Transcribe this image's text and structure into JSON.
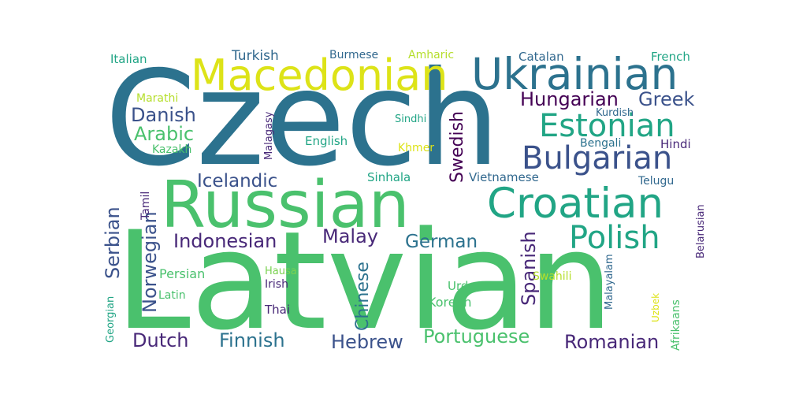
{
  "words": [
    {
      "text": "Czech",
      "color": "#2c728e"
    },
    {
      "text": "Latvian",
      "color": "#4ac16d"
    },
    {
      "text": "Russian",
      "color": "#4ac16d"
    },
    {
      "text": "Ukrainian",
      "color": "#2c728e"
    },
    {
      "text": "Macedonian",
      "color": "#dde318"
    },
    {
      "text": "Croatian",
      "color": "#21a585"
    },
    {
      "text": "Bulgarian",
      "color": "#3b528b"
    },
    {
      "text": "Estonian",
      "color": "#21a585"
    },
    {
      "text": "Polish",
      "color": "#21a585"
    },
    {
      "text": "Hungarian",
      "color": "#440154"
    },
    {
      "text": "Greek",
      "color": "#3b528b"
    },
    {
      "text": "Danish",
      "color": "#3b528b"
    },
    {
      "text": "Arabic",
      "color": "#4ac16d"
    },
    {
      "text": "Icelandic",
      "color": "#3b528b"
    },
    {
      "text": "Indonesian",
      "color": "#482878"
    },
    {
      "text": "Malay",
      "color": "#482878"
    },
    {
      "text": "German",
      "color": "#2c728e"
    },
    {
      "text": "Swedish",
      "color": "#440154"
    },
    {
      "text": "Spanish",
      "color": "#482878"
    },
    {
      "text": "Serbian",
      "color": "#3b528b"
    },
    {
      "text": "Norwegian",
      "color": "#3b528b"
    },
    {
      "text": "Chinese",
      "color": "#2c728e"
    },
    {
      "text": "Portuguese",
      "color": "#4ac16d"
    },
    {
      "text": "Romanian",
      "color": "#482878"
    },
    {
      "text": "Hebrew",
      "color": "#3b528b"
    },
    {
      "text": "Finnish",
      "color": "#2c728e"
    },
    {
      "text": "Dutch",
      "color": "#482878"
    },
    {
      "text": "Turkish",
      "color": "#31688e"
    },
    {
      "text": "Burmese",
      "color": "#31688e"
    },
    {
      "text": "Amharic",
      "color": "#b5de2b"
    },
    {
      "text": "Catalan",
      "color": "#31688e"
    },
    {
      "text": "French",
      "color": "#21a585"
    },
    {
      "text": "Italian",
      "color": "#21a585"
    },
    {
      "text": "Marathi",
      "color": "#b5de2b"
    },
    {
      "text": "Malagasy",
      "color": "#482878"
    },
    {
      "text": "Sindhi",
      "color": "#21a585"
    },
    {
      "text": "Kurdish",
      "color": "#31688e"
    },
    {
      "text": "Kazakh",
      "color": "#4ac16d"
    },
    {
      "text": "English",
      "color": "#21a585"
    },
    {
      "text": "Khmer",
      "color": "#dde318"
    },
    {
      "text": "Bengali",
      "color": "#2c728e"
    },
    {
      "text": "Hindi",
      "color": "#482878"
    },
    {
      "text": "Sinhala",
      "color": "#21a585"
    },
    {
      "text": "Vietnamese",
      "color": "#31688e"
    },
    {
      "text": "Telugu",
      "color": "#31688e"
    },
    {
      "text": "Tamil",
      "color": "#482878"
    },
    {
      "text": "Belarusian",
      "color": "#482878"
    },
    {
      "text": "Persian",
      "color": "#4ac16d"
    },
    {
      "text": "Hausa",
      "color": "#7ad151"
    },
    {
      "text": "Irish",
      "color": "#482878"
    },
    {
      "text": "Latin",
      "color": "#4ac16d"
    },
    {
      "text": "Thai",
      "color": "#482878"
    },
    {
      "text": "Urdu",
      "color": "#4ac16d"
    },
    {
      "text": "Korean",
      "color": "#4ac16d"
    },
    {
      "text": "Swahili",
      "color": "#b5de2b"
    },
    {
      "text": "Malayalam",
      "color": "#31688e"
    },
    {
      "text": "Uzbek",
      "color": "#dde318"
    },
    {
      "text": "Afrikaans",
      "color": "#4ac16d"
    },
    {
      "text": "Georgian",
      "color": "#21a585"
    }
  ]
}
